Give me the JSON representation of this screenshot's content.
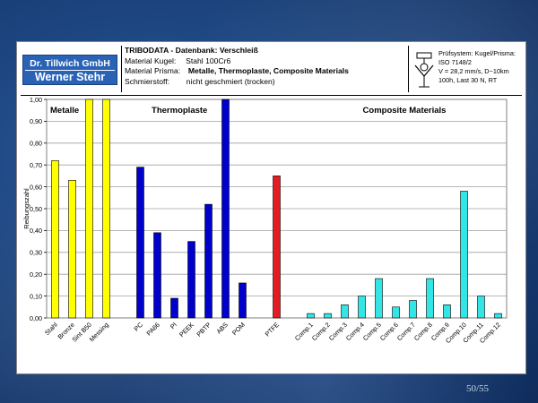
{
  "header": {
    "logo": {
      "line1": "Dr. Tillwich GmbH",
      "line2": "Werner Stehr"
    },
    "title": "TRIBODATA - Datenbank: Verschleiß",
    "kugel_label": "Material Kugel:",
    "kugel_value": "Stahl 100Cr6",
    "prisma_label": "Material Prisma:",
    "prisma_value": "Metalle, Thermoplaste, Composite Materials",
    "schmier_label": "Schmierstoff:",
    "schmier_value": "nicht geschmiert (trocken)",
    "pruef_lines": [
      "Prüfsystem: Kugel/Prisma:",
      "ISO 7148/2",
      "V = 28,2 mm/s, D~10km",
      "100h, Last 30 N, RT"
    ],
    "tester_icon": "test-rig-icon"
  },
  "chart_data": {
    "type": "bar",
    "ylabel": "Reibungszahl",
    "ylim": [
      0,
      1.0
    ],
    "yticks": [
      "0,00",
      "0,10",
      "0,20",
      "0,30",
      "0,40",
      "0,50",
      "0,60",
      "0,70",
      "0,80",
      "0,90",
      "1,00"
    ],
    "grid": true,
    "group_titles": [
      "Metalle",
      "Thermoplaste",
      "Composite Materials"
    ],
    "categories": [
      "Stahl",
      "Bronze",
      "Sint B50",
      "Messing",
      "",
      "PC",
      "PA66",
      "PI",
      "PEEK",
      "PBTP",
      "ABS",
      "POM",
      "",
      "PTFE",
      "",
      "Comp.1",
      "Comp.2",
      "Comp.3",
      "Comp.4",
      "Comp.5",
      "Comp.6",
      "Comp.7",
      "Comp.8",
      "Comp.9",
      "Comp.10",
      "Comp.11",
      "Comp.12"
    ],
    "values": [
      0.72,
      0.63,
      1.0,
      1.0,
      null,
      0.69,
      0.39,
      0.09,
      0.35,
      0.52,
      1.0,
      0.16,
      null,
      0.65,
      null,
      0.02,
      0.02,
      0.06,
      0.1,
      0.18,
      0.05,
      0.08,
      0.18,
      0.06,
      0.58,
      0.1,
      0.02
    ],
    "groups": [
      "metal",
      "metal",
      "metal",
      "metal",
      null,
      "thermo",
      "thermo",
      "thermo",
      "thermo",
      "thermo",
      "thermo",
      "thermo",
      null,
      "ptfe",
      null,
      "comp",
      "comp",
      "comp",
      "comp",
      "comp",
      "comp",
      "comp",
      "comp",
      "comp",
      "comp",
      "comp",
      "comp"
    ],
    "colors": {
      "metal": "#ffff00",
      "thermo": "#0000cc",
      "ptfe": "#e31b23",
      "comp": "#33e5e5"
    }
  },
  "slide_number": "50/55"
}
